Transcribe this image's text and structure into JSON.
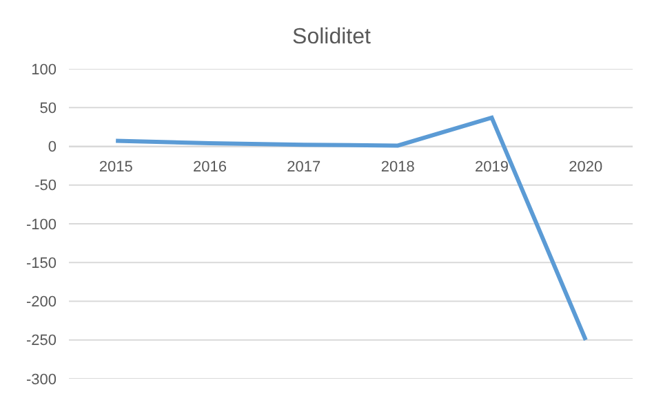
{
  "chart_data": {
    "type": "line",
    "title": "Soliditet",
    "categories": [
      "2015",
      "2016",
      "2017",
      "2018",
      "2019",
      "2020"
    ],
    "series": [
      {
        "color": "#5b9bd5",
        "values": [
          7,
          4,
          2,
          1,
          37,
          -250
        ]
      }
    ],
    "ylim": [
      -300,
      100
    ],
    "yticks": [
      -300,
      -250,
      -200,
      -150,
      -100,
      -50,
      0,
      50,
      100
    ],
    "grid": "y",
    "marker": "none",
    "line_style": "solid"
  }
}
